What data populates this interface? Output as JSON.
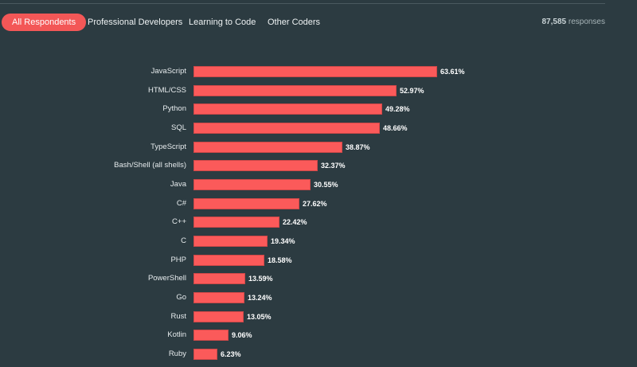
{
  "tabs": [
    {
      "label": "All Respondents",
      "active": true
    },
    {
      "label": "Professional Developers",
      "active": false
    },
    {
      "label": "Learning to Code",
      "active": false
    },
    {
      "label": "Other Coders",
      "active": false
    }
  ],
  "responses": {
    "count": "87,585",
    "label": "responses"
  },
  "colors": {
    "accent": "#f35757",
    "bar": "#fb5a5a",
    "background": "#2c3b41"
  },
  "chart_data": {
    "type": "bar",
    "orientation": "horizontal",
    "categories": [
      "JavaScript",
      "HTML/CSS",
      "Python",
      "SQL",
      "TypeScript",
      "Bash/Shell (all shells)",
      "Java",
      "C#",
      "C++",
      "C",
      "PHP",
      "PowerShell",
      "Go",
      "Rust",
      "Kotlin",
      "Ruby"
    ],
    "values": [
      63.61,
      52.97,
      49.28,
      48.66,
      38.87,
      32.37,
      30.55,
      27.62,
      22.42,
      19.34,
      18.58,
      13.59,
      13.24,
      13.05,
      9.06,
      6.23
    ],
    "value_labels": [
      "63.61%",
      "52.97%",
      "49.28%",
      "48.66%",
      "38.87%",
      "32.37%",
      "30.55%",
      "27.62%",
      "22.42%",
      "19.34%",
      "18.58%",
      "13.59%",
      "13.24%",
      "13.05%",
      "9.06%",
      "6.23%"
    ],
    "unit": "%",
    "xlim": [
      0,
      100
    ]
  }
}
